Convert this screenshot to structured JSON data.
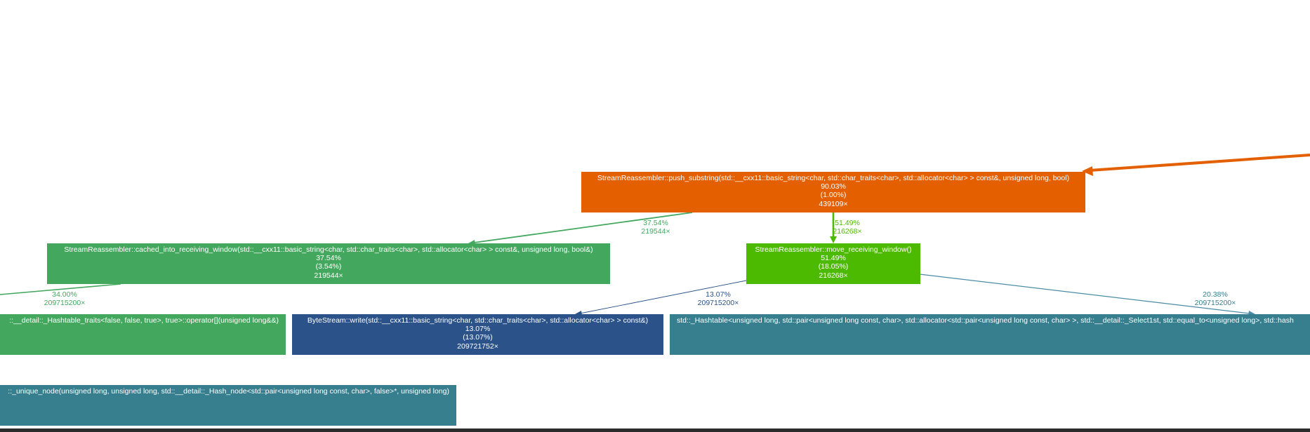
{
  "colors": {
    "orange": "#e35f00",
    "bright_green": "#4cba00",
    "green": "#43a85e",
    "teal": "#377f8f",
    "navy": "#2b538a",
    "edge_orange": "#e35f00",
    "edge_green": "#43a85e",
    "edge_bright_green": "#4cba00",
    "edge_navy": "#2b538a",
    "edge_teal": "#4b8ca6"
  },
  "nodes": {
    "push_substring": {
      "name": "StreamReassembler::push_substring(std::__cxx11::basic_string<char, std::char_traits<char>, std::allocator<char> > const&, unsigned long, bool)",
      "total": "90.03%",
      "self": "(1.00%)",
      "calls": "439109×"
    },
    "cached_into_receiving_window": {
      "name": "StreamReassembler::cached_into_receiving_window(std::__cxx11::basic_string<char, std::char_traits<char>, std::allocator<char> > const&, unsigned long, bool&)",
      "total": "37.54%",
      "self": "(3.54%)",
      "calls": "219544×"
    },
    "move_receiving_window": {
      "name": "StreamReassembler::move_receiving_window()",
      "total": "51.49%",
      "self": "(18.05%)",
      "calls": "216268×"
    },
    "hashtable_operator": {
      "name": "::__detail::_Hashtable_traits<false, false, true>, true>::operator[](unsigned long&&)"
    },
    "bytestream_write": {
      "name": "ByteStream::write(std::__cxx11::basic_string<char, std::char_traits<char>, std::allocator<char> > const&)",
      "total": "13.07%",
      "self": "(13.07%)",
      "calls": "209721752×"
    },
    "hashtable_right": {
      "name": "std::_Hashtable<unsigned long, std::pair<unsigned long const, char>, std::allocator<std::pair<unsigned long const, char> >, std::__detail::_Select1st, std::equal_to<unsigned long>, std::hash"
    },
    "insert_unique_node": {
      "name": "::_unique_node(unsigned long, unsigned long, std::__detail::_Hash_node<std::pair<unsigned long const, char>, false>*, unsigned long)"
    }
  },
  "edges": {
    "push_to_cached": {
      "pct": "37.54%",
      "calls": "219544×"
    },
    "push_to_move": {
      "pct": "51.49%",
      "calls": "216268×"
    },
    "cached_to_hashtable": {
      "pct": "34.00%",
      "calls": "209715200×"
    },
    "move_to_write": {
      "pct": "13.07%",
      "calls": "209715200×"
    },
    "move_to_hashtable_right": {
      "pct": "20.38%",
      "calls": "209715200×"
    }
  }
}
